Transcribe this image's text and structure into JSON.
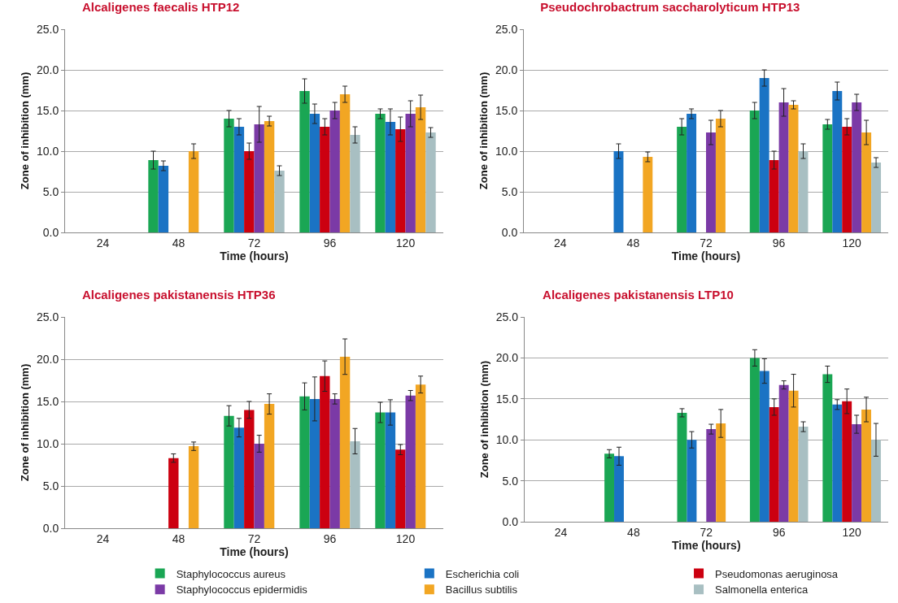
{
  "chart_data": [
    {
      "type": "bar",
      "title": "Alcaligenes faecalis HTP12",
      "xlabel": "Time (hours)",
      "ylabel": "Zone of inhibition (mm)",
      "categories": [
        "24",
        "48",
        "72",
        "96",
        "120"
      ],
      "ylim": [
        0,
        25
      ],
      "yticks": [
        {
          "value": 0,
          "label": "0.0"
        },
        {
          "value": 5,
          "label": "5.0"
        },
        {
          "value": 10,
          "label": "10.0"
        },
        {
          "value": 15,
          "label": "15.0"
        },
        {
          "value": 20,
          "label": "20.0"
        },
        {
          "value": 25,
          "label": "25.0"
        }
      ],
      "grid": "y",
      "legend": false,
      "series": [
        {
          "color": "#1aa654",
          "values": [
            null,
            8.9,
            14.0,
            17.4,
            14.6
          ],
          "errors": [
            null,
            1.1,
            1.0,
            1.5,
            0.6
          ]
        },
        {
          "color": "#1a73c4",
          "values": [
            null,
            8.2,
            13.0,
            14.6,
            13.6
          ],
          "errors": [
            null,
            0.6,
            1.0,
            1.2,
            1.6
          ]
        },
        {
          "color": "#cc0010",
          "values": [
            null,
            null,
            10.0,
            13.0,
            12.7
          ],
          "errors": [
            null,
            null,
            1.0,
            1.0,
            1.5
          ]
        },
        {
          "color": "#7b3aa6",
          "values": [
            null,
            null,
            13.3,
            15.0,
            14.6
          ],
          "errors": [
            null,
            null,
            2.2,
            1.0,
            1.6
          ]
        },
        {
          "color": "#f2a623",
          "values": [
            null,
            10.0,
            13.7,
            17.0,
            15.4
          ],
          "errors": [
            null,
            0.9,
            0.6,
            1.0,
            1.5
          ]
        },
        {
          "color": "#a8bfc2",
          "values": [
            null,
            null,
            7.6,
            12.0,
            12.3
          ],
          "errors": [
            null,
            null,
            0.6,
            1.0,
            0.6
          ]
        }
      ]
    },
    {
      "type": "bar",
      "title": "Pseudochrobactrum saccharolyticum HTP13",
      "xlabel": "Time (hours)",
      "ylabel": "Zone of inhibition (mm)",
      "categories": [
        "24",
        "48",
        "72",
        "96",
        "120"
      ],
      "ylim": [
        0,
        25
      ],
      "yticks": [
        {
          "value": 0,
          "label": "0.0"
        },
        {
          "value": 5,
          "label": "5.0"
        },
        {
          "value": 10,
          "label": "10.0"
        },
        {
          "value": 15,
          "label": "15.0"
        },
        {
          "value": 20,
          "label": "20.0"
        },
        {
          "value": 25,
          "label": "25.0"
        }
      ],
      "grid": "y",
      "legend": false,
      "series": [
        {
          "color": "#1aa654",
          "values": [
            null,
            null,
            13.0,
            15.0,
            13.3
          ],
          "errors": [
            null,
            null,
            1.0,
            1.0,
            0.6
          ]
        },
        {
          "color": "#1a73c4",
          "values": [
            null,
            10.0,
            14.6,
            19.0,
            17.4
          ],
          "errors": [
            null,
            0.9,
            0.6,
            1.0,
            1.1
          ]
        },
        {
          "color": "#cc0010",
          "values": [
            null,
            null,
            null,
            8.9,
            13.0
          ],
          "errors": [
            null,
            null,
            null,
            1.1,
            1.0
          ]
        },
        {
          "color": "#7b3aa6",
          "values": [
            null,
            null,
            12.3,
            16.0,
            16.0
          ],
          "errors": [
            null,
            null,
            1.5,
            1.7,
            1.0
          ]
        },
        {
          "color": "#f2a623",
          "values": [
            null,
            9.3,
            14.0,
            15.7,
            12.3
          ],
          "errors": [
            null,
            0.6,
            1.0,
            0.5,
            1.5
          ]
        },
        {
          "color": "#a8bfc2",
          "values": [
            null,
            null,
            null,
            10.0,
            8.6
          ],
          "errors": [
            null,
            null,
            null,
            0.9,
            0.6
          ]
        }
      ]
    },
    {
      "type": "bar",
      "title": "Alcaligenes pakistanensis HTP36",
      "xlabel": "Time (hours)",
      "ylabel": "Zone of inhibition (mm)",
      "categories": [
        "24",
        "48",
        "72",
        "96",
        "120"
      ],
      "ylim": [
        0,
        25
      ],
      "yticks": [
        {
          "value": 0,
          "label": "0.0"
        },
        {
          "value": 5,
          "label": "5.0"
        },
        {
          "value": 10,
          "label": "10.0"
        },
        {
          "value": 15,
          "label": "15.0"
        },
        {
          "value": 20,
          "label": "20.0"
        },
        {
          "value": 25,
          "label": "25.0"
        }
      ],
      "grid": "y",
      "legend": false,
      "series": [
        {
          "color": "#1aa654",
          "values": [
            null,
            null,
            13.3,
            15.6,
            13.7
          ],
          "errors": [
            null,
            null,
            1.2,
            1.6,
            1.2
          ]
        },
        {
          "color": "#1a73c4",
          "values": [
            null,
            null,
            11.9,
            15.3,
            13.7
          ],
          "errors": [
            null,
            null,
            1.1,
            2.6,
            1.5
          ]
        },
        {
          "color": "#cc0010",
          "values": [
            null,
            8.3,
            14.0,
            18.0,
            9.3
          ],
          "errors": [
            null,
            0.5,
            1.0,
            1.8,
            0.6
          ]
        },
        {
          "color": "#7b3aa6",
          "values": [
            null,
            null,
            10.0,
            15.3,
            15.7
          ],
          "errors": [
            null,
            null,
            1.0,
            0.6,
            0.6
          ]
        },
        {
          "color": "#f2a623",
          "values": [
            null,
            9.7,
            14.7,
            20.3,
            17.0
          ],
          "errors": [
            null,
            0.5,
            1.2,
            2.1,
            1.0
          ]
        },
        {
          "color": "#a8bfc2",
          "values": [
            null,
            null,
            null,
            10.3,
            null
          ],
          "errors": [
            null,
            null,
            null,
            1.5,
            null
          ]
        }
      ]
    },
    {
      "type": "bar",
      "title": "Alcaligenes pakistanensis LTP10",
      "xlabel": "Time (hours)",
      "ylabel": "Zone of inhibition (mm)",
      "categories": [
        "24",
        "48",
        "72",
        "96",
        "120"
      ],
      "ylim": [
        0,
        25
      ],
      "yticks": [
        {
          "value": 0,
          "label": "0.0"
        },
        {
          "value": 5,
          "label": "5.0"
        },
        {
          "value": 10,
          "label": "10.0"
        },
        {
          "value": 15,
          "label": "15.0"
        },
        {
          "value": 20,
          "label": "20.0"
        },
        {
          "value": 25,
          "label": "25.0"
        }
      ],
      "grid": "y",
      "legend": "bottom",
      "series": [
        {
          "name": "Staphylococcus aureus",
          "color": "#1aa654",
          "values": [
            null,
            8.3,
            13.3,
            20.0,
            18.0
          ],
          "errors": [
            null,
            0.5,
            0.5,
            1.0,
            1.0
          ]
        },
        {
          "name": "Escherichia coli",
          "color": "#1a73c4",
          "values": [
            null,
            8.0,
            10.0,
            18.4,
            14.3
          ],
          "errors": [
            null,
            1.1,
            1.0,
            1.5,
            0.6
          ]
        },
        {
          "name": "Pseudomonas aeruginosa",
          "color": "#cc0010",
          "values": [
            null,
            null,
            null,
            14.0,
            14.7
          ],
          "errors": [
            null,
            null,
            null,
            1.0,
            1.5
          ]
        },
        {
          "name": "Staphylococcus epidermidis",
          "color": "#7b3aa6",
          "values": [
            null,
            null,
            11.3,
            16.7,
            11.9
          ],
          "errors": [
            null,
            null,
            0.6,
            0.5,
            1.1
          ]
        },
        {
          "name": "Bacillus subtilis",
          "color": "#f2a623",
          "values": [
            null,
            null,
            12.0,
            16.0,
            13.7
          ],
          "errors": [
            null,
            null,
            1.7,
            2.0,
            1.5
          ]
        },
        {
          "name": "Salmonella enterica",
          "color": "#a8bfc2",
          "values": [
            null,
            null,
            null,
            11.6,
            10.0
          ],
          "errors": [
            null,
            null,
            null,
            0.6,
            2.0
          ]
        }
      ]
    }
  ]
}
